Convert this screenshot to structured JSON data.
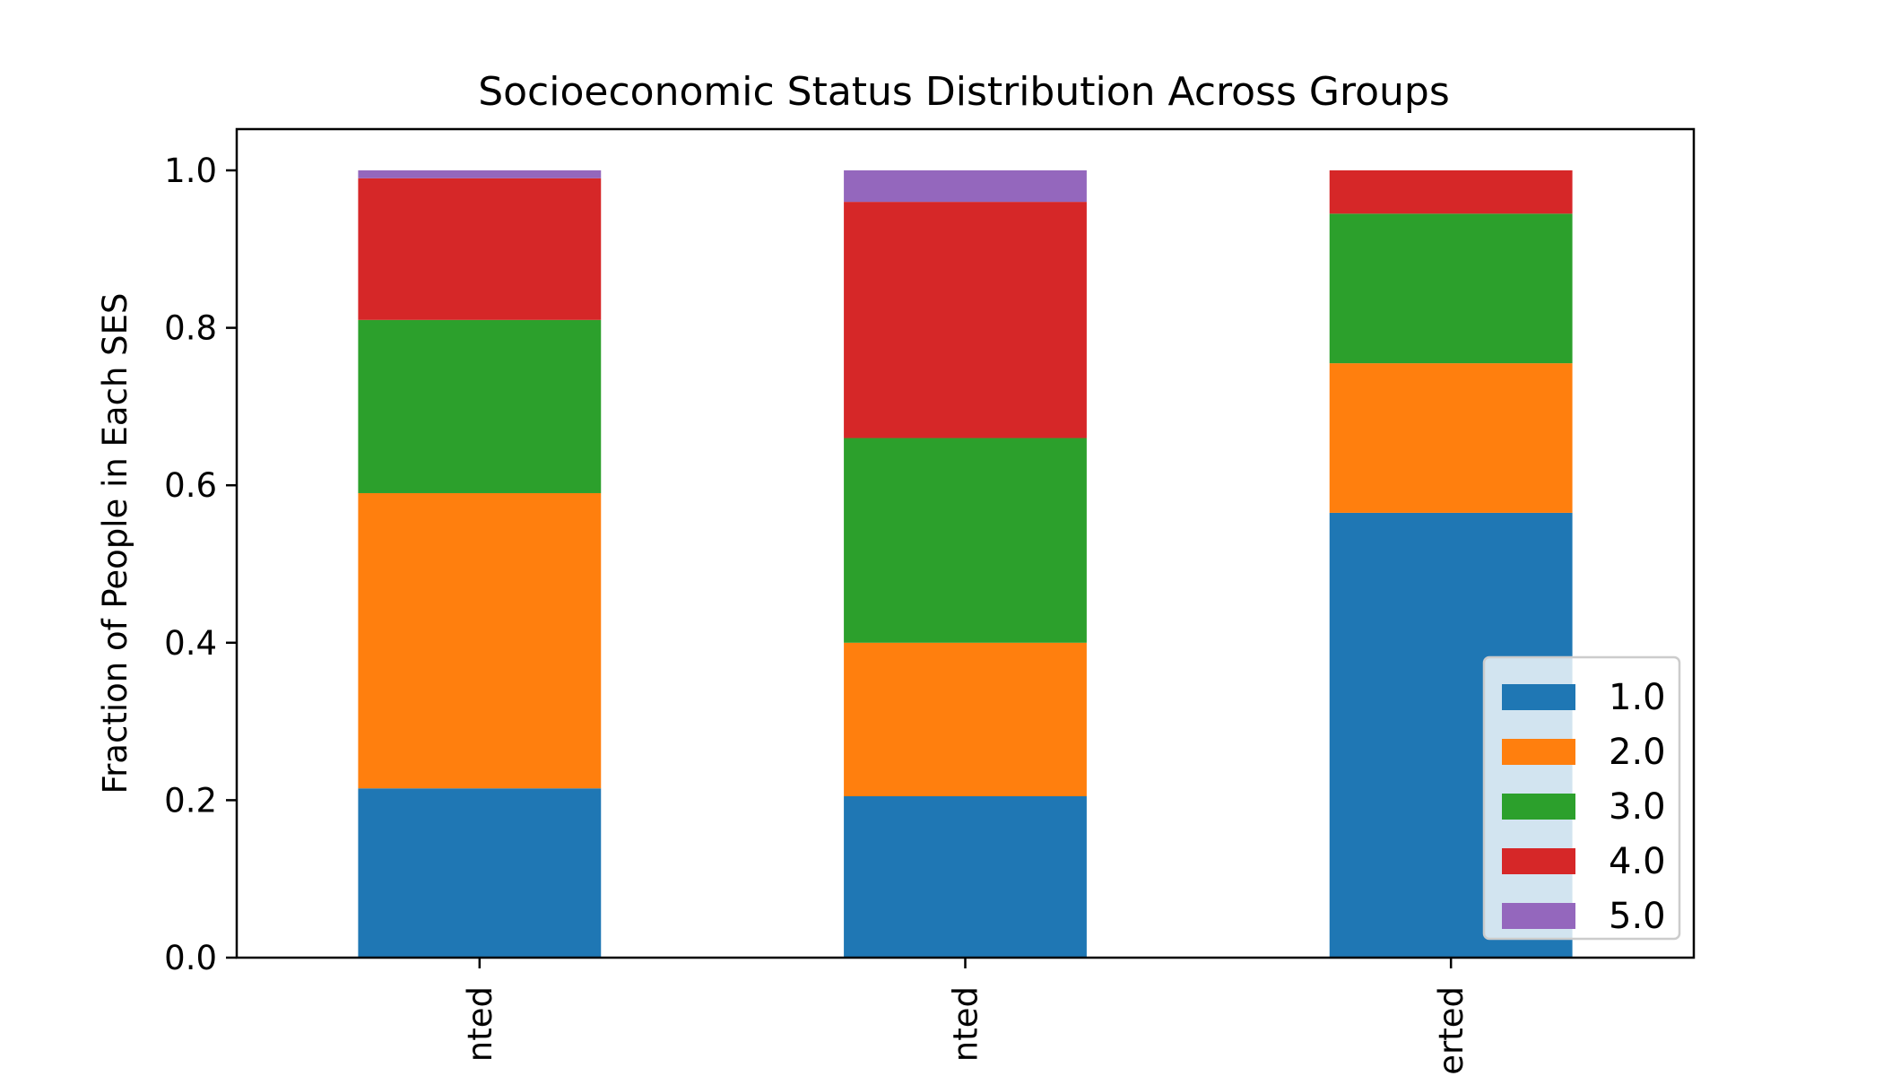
{
  "chart_data": {
    "type": "bar",
    "stacked": true,
    "title": "Socioeconomic Status Distribution Across Groups",
    "xlabel": "",
    "ylabel": "Fraction of People in Each SES",
    "ylim": [
      0,
      1.05
    ],
    "yticks": [
      "0.0",
      "0.2",
      "0.4",
      "0.6",
      "0.8",
      "1.0"
    ],
    "categories": [
      "nted",
      "nted",
      "erted"
    ],
    "series": [
      {
        "name": "1.0",
        "color": "#1f77b4",
        "values": [
          0.215,
          0.205,
          0.565
        ]
      },
      {
        "name": "2.0",
        "color": "#ff7f0e",
        "values": [
          0.375,
          0.195,
          0.19
        ]
      },
      {
        "name": "3.0",
        "color": "#2ca02c",
        "values": [
          0.22,
          0.26,
          0.19
        ]
      },
      {
        "name": "4.0",
        "color": "#d62728",
        "values": [
          0.18,
          0.3,
          0.055
        ]
      },
      {
        "name": "5.0",
        "color": "#9467bd",
        "values": [
          0.01,
          0.04,
          0.0
        ]
      }
    ],
    "grid": false,
    "legend_position": "lower-right"
  }
}
